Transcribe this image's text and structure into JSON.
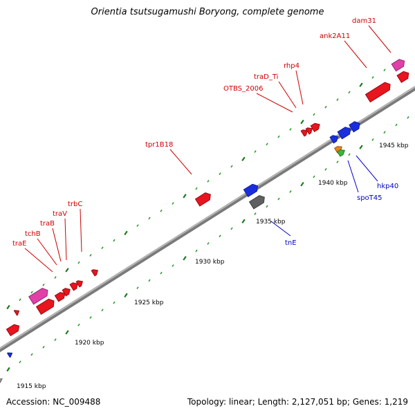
{
  "title": "Orientia tsutsugamushi Boryong, complete genome",
  "accession": "Accession: NC_009488",
  "summary": "Topology: linear; Length: 2,127,051 bp; Genes: 1,219",
  "ticks": [
    "1915 kbp",
    "1920 kbp",
    "1925 kbp",
    "1930 kbp",
    "1935 kbp",
    "1940 kbp",
    "1945 kbp"
  ],
  "forward_labels": [
    "traE",
    "tchB",
    "traB",
    "traV",
    "trbC",
    "tpr1B18",
    "OTBS_2006",
    "traD_Ti",
    "rhp4",
    "ank2A11",
    "dam31"
  ],
  "reverse_labels": [
    "tnE",
    "spoT45",
    "hkp40"
  ],
  "colors": {
    "backbone": "#8c8c8c",
    "forward_label": "#cc0000",
    "reverse_label": "#0000cc",
    "red_gene": "#e8141e",
    "pink_gene": "#e040a8",
    "blue_gene": "#1a2ee0",
    "gray_gene": "#606060",
    "orange_gene": "#f08018",
    "green_gene": "#38b838",
    "tick_major": "#1e7a1e",
    "tick_minor": "#2a9a2a"
  }
}
